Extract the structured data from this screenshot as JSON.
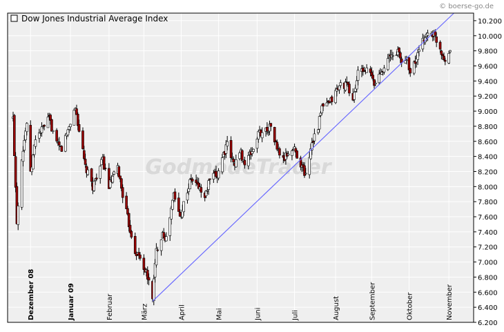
{
  "credit": "© boerse-go.de",
  "watermark": "GodmodeTrader",
  "legend": {
    "label": "Dow Jones Industrial Average Index"
  },
  "colors": {
    "up_candle": "#ffffff",
    "down_candle": "#990000",
    "wick": "#000000",
    "trendline": "#6a6aff",
    "plot_bg": "#efefef",
    "grid": "#ffffff"
  },
  "chart_data": {
    "type": "candlestick",
    "title": "Dow Jones Industrial Average Index",
    "ylim": [
      6200,
      10300
    ],
    "yticks": [
      6200,
      6400,
      6600,
      6800,
      7000,
      7200,
      7400,
      7600,
      7800,
      8000,
      8200,
      8400,
      8600,
      8800,
      9000,
      9200,
      9400,
      9600,
      9800,
      10000,
      10200
    ],
    "ytick_labels": [
      "6.200",
      "6.400",
      "6.600",
      "6.800",
      "7.000",
      "7.200",
      "7.400",
      "7.600",
      "7.800",
      "8.000",
      "8.200",
      "8.400",
      "8.600",
      "8.800",
      "9.000",
      "9.200",
      "9.400",
      "9.600",
      "9.800",
      "10.000",
      "10.200"
    ],
    "x_range": [
      "2008-11-17",
      "2009-11-03"
    ],
    "month_labels": [
      {
        "label": "Dezember 08",
        "date": "2008-12-01",
        "bold": true
      },
      {
        "label": "Januar 09",
        "date": "2009-01-02",
        "bold": true
      },
      {
        "label": "Februar",
        "date": "2009-02-02",
        "bold": false
      },
      {
        "label": "März",
        "date": "2009-03-02",
        "bold": false
      },
      {
        "label": "April",
        "date": "2009-04-01",
        "bold": false
      },
      {
        "label": "Mai",
        "date": "2009-05-01",
        "bold": false
      },
      {
        "label": "Juni",
        "date": "2009-06-01",
        "bold": false
      },
      {
        "label": "Juli",
        "date": "2009-07-01",
        "bold": false
      },
      {
        "label": "August",
        "date": "2009-08-03",
        "bold": false
      },
      {
        "label": "September",
        "date": "2009-09-01",
        "bold": false
      },
      {
        "label": "Oktober",
        "date": "2009-10-01",
        "bold": false
      },
      {
        "label": "November",
        "date": "2009-11-02",
        "bold": false
      }
    ],
    "close_path": [
      [
        "2008-11-17",
        8900
      ],
      [
        "2008-11-20",
        7550
      ],
      [
        "2008-11-24",
        8400
      ],
      [
        "2008-11-28",
        8850
      ],
      [
        "2008-12-01",
        8150
      ],
      [
        "2008-12-05",
        8650
      ],
      [
        "2008-12-10",
        8750
      ],
      [
        "2008-12-16",
        8900
      ],
      [
        "2008-12-22",
        8550
      ],
      [
        "2008-12-26",
        8500
      ],
      [
        "2008-12-31",
        8750
      ],
      [
        "2009-01-06",
        9050
      ],
      [
        "2009-01-09",
        8750
      ],
      [
        "2009-01-14",
        8250
      ],
      [
        "2009-01-20",
        8000
      ],
      [
        "2009-01-23",
        8150
      ],
      [
        "2009-01-28",
        8350
      ],
      [
        "2009-02-02",
        8000
      ],
      [
        "2009-02-09",
        8250
      ],
      [
        "2009-02-13",
        7900
      ],
      [
        "2009-02-18",
        7500
      ],
      [
        "2009-02-23",
        7150
      ],
      [
        "2009-02-27",
        7050
      ],
      [
        "2009-03-04",
        6850
      ],
      [
        "2009-03-09",
        6550
      ],
      [
        "2009-03-12",
        7150
      ],
      [
        "2009-03-17",
        7400
      ],
      [
        "2009-03-20",
        7300
      ],
      [
        "2009-03-26",
        7900
      ],
      [
        "2009-03-31",
        7600
      ],
      [
        "2009-04-06",
        7950
      ],
      [
        "2009-04-09",
        8100
      ],
      [
        "2009-04-15",
        8000
      ],
      [
        "2009-04-20",
        7850
      ],
      [
        "2009-04-24",
        8100
      ],
      [
        "2009-04-30",
        8150
      ],
      [
        "2009-05-04",
        8400
      ],
      [
        "2009-05-08",
        8550
      ],
      [
        "2009-05-13",
        8300
      ],
      [
        "2009-05-19",
        8450
      ],
      [
        "2009-05-22",
        8300
      ],
      [
        "2009-05-29",
        8500
      ],
      [
        "2009-06-02",
        8700
      ],
      [
        "2009-06-08",
        8750
      ],
      [
        "2009-06-12",
        8800
      ],
      [
        "2009-06-17",
        8500
      ],
      [
        "2009-06-22",
        8350
      ],
      [
        "2009-06-26",
        8450
      ],
      [
        "2009-07-01",
        8500
      ],
      [
        "2009-07-06",
        8300
      ],
      [
        "2009-07-10",
        8150
      ],
      [
        "2009-07-15",
        8600
      ],
      [
        "2009-07-20",
        8800
      ],
      [
        "2009-07-23",
        9050
      ],
      [
        "2009-07-29",
        9100
      ],
      [
        "2009-08-03",
        9250
      ],
      [
        "2009-08-07",
        9350
      ],
      [
        "2009-08-12",
        9350
      ],
      [
        "2009-08-17",
        9150
      ],
      [
        "2009-08-21",
        9500
      ],
      [
        "2009-08-26",
        9550
      ],
      [
        "2009-08-31",
        9500
      ],
      [
        "2009-09-03",
        9350
      ],
      [
        "2009-09-09",
        9550
      ],
      [
        "2009-09-15",
        9700
      ],
      [
        "2009-09-22",
        9800
      ],
      [
        "2009-09-25",
        9650
      ],
      [
        "2009-09-30",
        9700
      ],
      [
        "2009-10-02",
        9500
      ],
      [
        "2009-10-07",
        9700
      ],
      [
        "2009-10-14",
        10000
      ],
      [
        "2009-10-19",
        10050
      ],
      [
        "2009-10-23",
        9950
      ],
      [
        "2009-10-28",
        9750
      ],
      [
        "2009-10-30",
        9700
      ],
      [
        "2009-11-03",
        9800
      ]
    ],
    "trendline": {
      "from": [
        "2009-03-09",
        6480
      ],
      "to": [
        "2009-11-06",
        10300
      ]
    }
  }
}
